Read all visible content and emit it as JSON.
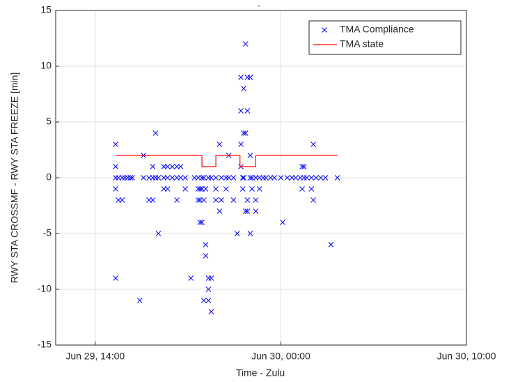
{
  "chart_data": {
    "type": "scatter",
    "title": ".",
    "xlabel": "Time - Zulu",
    "ylabel": "RWY STA CROSSMF - RWY STA FREEZE [min]",
    "xlim": [
      11.87,
      34
    ],
    "ylim": [
      -15,
      15
    ],
    "xticks": [
      {
        "value": 14,
        "label": "Jun 29, 14:00"
      },
      {
        "value": 24,
        "label": "Jun 30, 00:00"
      },
      {
        "value": 34,
        "label": "Jun 30, 10:00"
      }
    ],
    "yticks": [
      -15,
      -10,
      -5,
      0,
      5,
      10,
      15
    ],
    "grid": true,
    "legend": "upper right",
    "series": [
      {
        "name": "TMA Compliance",
        "type": "scatter",
        "color": "#0000ff",
        "x": [
          15.1,
          15.1,
          15.1,
          15.1,
          15.1,
          15.25,
          15.25,
          15.45,
          15.45,
          15.6,
          15.75,
          15.9,
          16.0,
          16.4,
          16.6,
          16.6,
          16.9,
          16.9,
          17.1,
          17.1,
          17.1,
          17.25,
          17.25,
          17.4,
          17.4,
          17.7,
          17.7,
          17.7,
          17.9,
          17.9,
          17.9,
          18.15,
          18.15,
          18.4,
          18.4,
          18.4,
          18.6,
          18.6,
          18.85,
          18.85,
          19.15,
          19.35,
          19.55,
          19.55,
          19.55,
          19.65,
          19.65,
          19.65,
          19.75,
          19.75,
          19.75,
          19.85,
          19.85,
          19.85,
          19.95,
          19.95,
          19.95,
          20.1,
          20.1,
          20.1,
          20.1,
          20.25,
          20.25,
          20.25,
          20.5,
          20.5,
          20.5,
          20.7,
          20.7,
          20.8,
          20.8,
          21.05,
          21.05,
          21.2,
          21.2,
          21.45,
          21.45,
          21.65,
          21.85,
          21.85,
          21.85,
          21.85,
          21.95,
          21.95,
          22.0,
          22.0,
          22.0,
          22.1,
          22.1,
          22.1,
          22.2,
          22.2,
          22.2,
          22.2,
          22.35,
          22.35,
          22.35,
          22.35,
          22.45,
          22.45,
          22.65,
          22.65,
          22.65,
          22.85,
          22.85,
          23.05,
          23.2,
          23.45,
          23.65,
          24.0,
          24.1,
          24.35,
          24.6,
          24.8,
          25.05,
          25.15,
          25.15,
          25.25,
          25.25,
          25.4,
          25.65,
          25.65,
          25.75,
          25.75,
          25.9,
          26.15,
          26.4,
          26.7,
          27.05
        ],
        "values": [
          3,
          1,
          0,
          -1,
          -9,
          -2,
          0,
          -2,
          0,
          0,
          0,
          0,
          0,
          -11,
          2,
          0,
          0,
          -2,
          -2,
          0,
          1,
          4,
          0,
          -5,
          0,
          1,
          0,
          -1,
          1,
          -1,
          0,
          1,
          0,
          -2,
          0,
          1,
          1,
          0,
          -1,
          0,
          -9,
          0,
          0,
          -1,
          -2,
          -2,
          -1,
          -4,
          -4,
          -1,
          0,
          -2,
          -11,
          0,
          -6,
          -7,
          -1,
          -10,
          -9,
          -11,
          0,
          -9,
          -12,
          0,
          -2,
          0,
          -1,
          3,
          -3,
          -2,
          0,
          -1,
          0,
          2,
          0,
          -2,
          0,
          -5,
          9,
          6,
          3,
          1,
          0,
          -1,
          8,
          4,
          0,
          12,
          4,
          -3,
          9,
          6,
          -3,
          -2,
          9,
          2,
          0,
          -5,
          -1,
          0,
          -2,
          0,
          -3,
          -1,
          0,
          0,
          0,
          0,
          0,
          0,
          -4,
          0,
          0,
          0,
          0,
          1,
          -1,
          1,
          0,
          0,
          -1,
          0,
          3,
          -2,
          0,
          0,
          0,
          -6,
          0
        ]
      },
      {
        "name": "TMA state",
        "type": "line",
        "color": "#ff0000",
        "x": [
          15.1,
          19.75,
          19.75,
          20.5,
          20.5,
          21.8,
          21.8,
          22.65,
          22.65,
          27.05
        ],
        "values": [
          2,
          2,
          1,
          1,
          2,
          2,
          1,
          1,
          2,
          2
        ]
      }
    ]
  }
}
